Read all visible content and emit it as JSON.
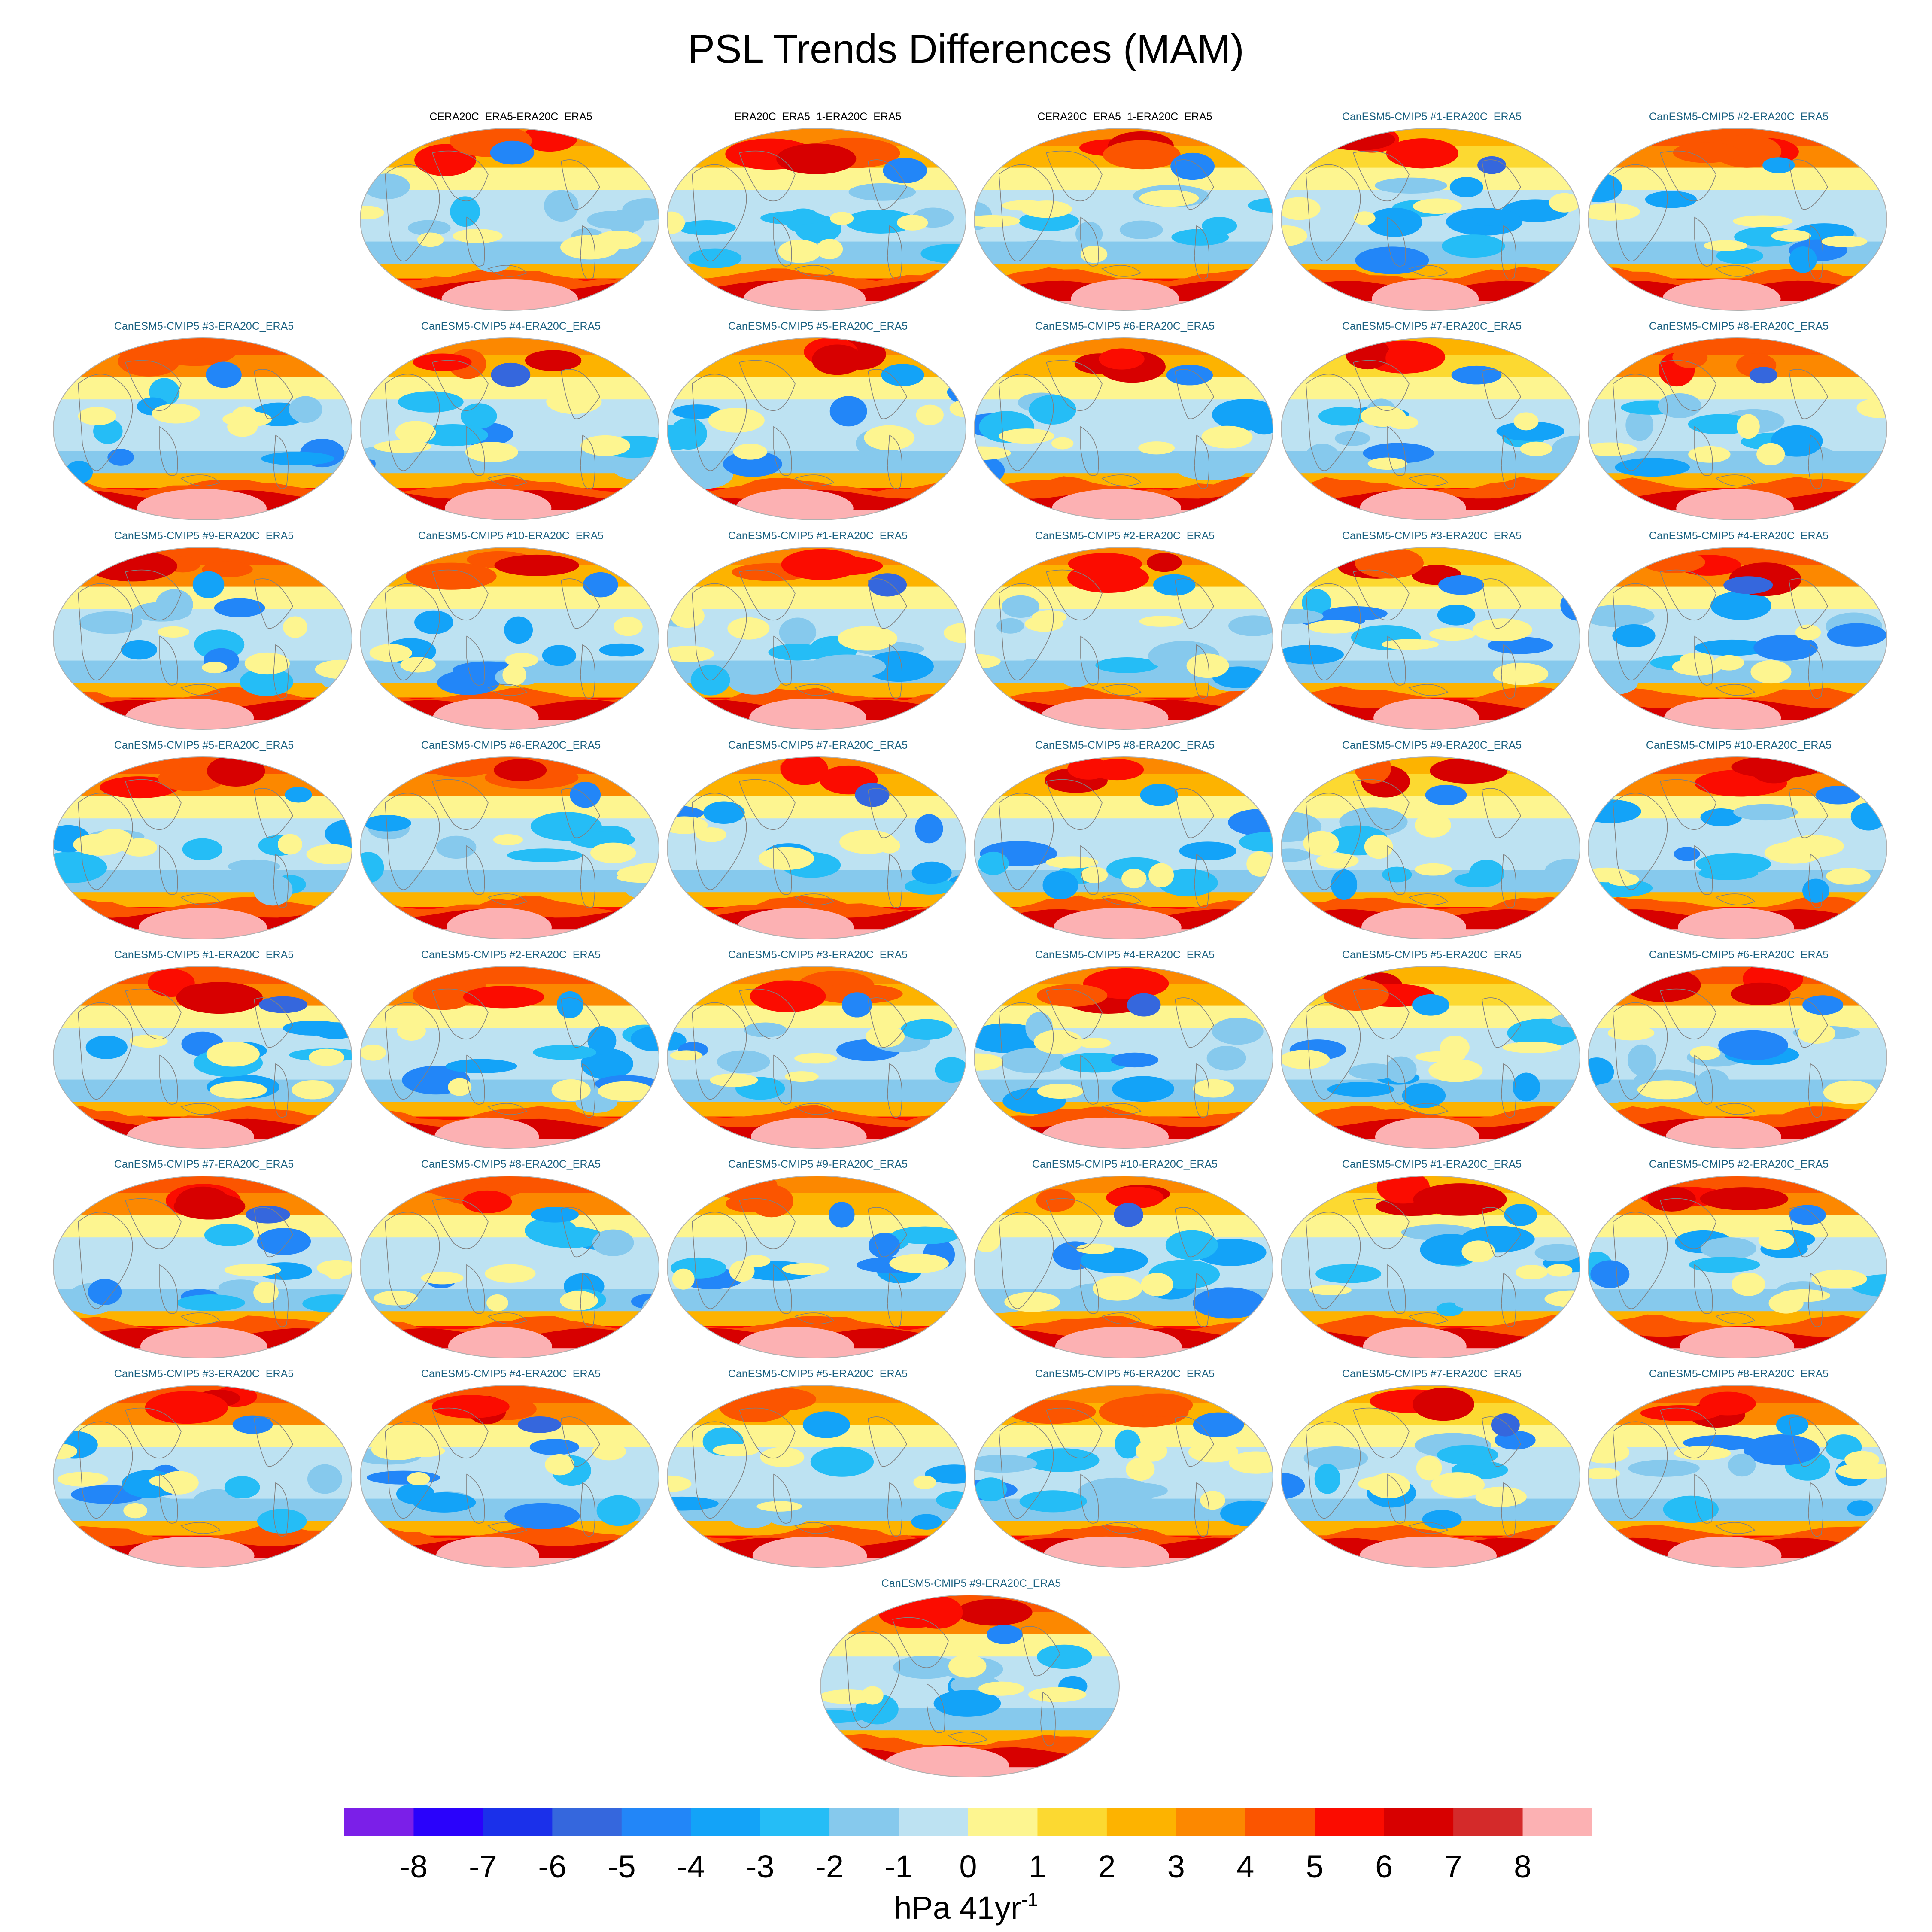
{
  "chart_data": {
    "type": "heatmap",
    "title": "PSL Trends Differences (MAM)",
    "projection": "Robinson",
    "colorbar": {
      "levels": [
        -8,
        -7,
        -6,
        -5,
        -4,
        -3,
        -2,
        -1,
        0,
        1,
        2,
        3,
        4,
        5,
        6,
        7,
        8
      ],
      "tick_labels": [
        "-8",
        "-7",
        "-6",
        "-5",
        "-4",
        "-3",
        "-2",
        "-1",
        "0",
        "1",
        "2",
        "3",
        "4",
        "5",
        "6",
        "7",
        "8"
      ],
      "colors": [
        "#7b1fe8",
        "#2a02fb",
        "#1b30ea",
        "#3567dd",
        "#2286f8",
        "#13a3f8",
        "#25bdf6",
        "#86c9ed",
        "#bde2f2",
        "#fdf590",
        "#fcd931",
        "#fdb300",
        "#fc8800",
        "#fb5500",
        "#fb0c00",
        "#d70000",
        "#d42a2a",
        "#fcb1b3"
      ],
      "units_base": "hPa 41yr",
      "units_exp": "-1"
    },
    "panels": [
      {
        "title": "CERA20C_ERA5-ERA20C_ERA5",
        "kind": "reanalysis",
        "variant": 0
      },
      {
        "title": "ERA20C_ERA5_1-ERA20C_ERA5",
        "kind": "reanalysis",
        "variant": 1
      },
      {
        "title": "CERA20C_ERA5_1-ERA20C_ERA5",
        "kind": "reanalysis",
        "variant": 2
      },
      {
        "title": "CanESM5-CMIP5 #1-ERA20C_ERA5",
        "kind": "model",
        "variant": 3
      },
      {
        "title": "CanESM5-CMIP5 #2-ERA20C_ERA5",
        "kind": "model",
        "variant": 4
      },
      {
        "title": "CanESM5-CMIP5 #3-ERA20C_ERA5",
        "kind": "model",
        "variant": 5
      },
      {
        "title": "CanESM5-CMIP5 #4-ERA20C_ERA5",
        "kind": "model",
        "variant": 6
      },
      {
        "title": "CanESM5-CMIP5 #5-ERA20C_ERA5",
        "kind": "model",
        "variant": 7
      },
      {
        "title": "CanESM5-CMIP5 #6-ERA20C_ERA5",
        "kind": "model",
        "variant": 8
      },
      {
        "title": "CanESM5-CMIP5 #7-ERA20C_ERA5",
        "kind": "model",
        "variant": 9
      },
      {
        "title": "CanESM5-CMIP5 #8-ERA20C_ERA5",
        "kind": "model",
        "variant": 10
      },
      {
        "title": "CanESM5-CMIP5 #9-ERA20C_ERA5",
        "kind": "model",
        "variant": 11
      },
      {
        "title": "CanESM5-CMIP5 #10-ERA20C_ERA5",
        "kind": "model",
        "variant": 12
      },
      {
        "title": "CanESM5-CMIP5 #1-ERA20C_ERA5",
        "kind": "model",
        "variant": 13
      },
      {
        "title": "CanESM5-CMIP5 #2-ERA20C_ERA5",
        "kind": "model",
        "variant": 14
      },
      {
        "title": "CanESM5-CMIP5 #3-ERA20C_ERA5",
        "kind": "model",
        "variant": 15
      },
      {
        "title": "CanESM5-CMIP5 #4-ERA20C_ERA5",
        "kind": "model",
        "variant": 16
      },
      {
        "title": "CanESM5-CMIP5 #5-ERA20C_ERA5",
        "kind": "model",
        "variant": 17
      },
      {
        "title": "CanESM5-CMIP5 #6-ERA20C_ERA5",
        "kind": "model",
        "variant": 18
      },
      {
        "title": "CanESM5-CMIP5 #7-ERA20C_ERA5",
        "kind": "model",
        "variant": 19
      },
      {
        "title": "CanESM5-CMIP5 #8-ERA20C_ERA5",
        "kind": "model",
        "variant": 20
      },
      {
        "title": "CanESM5-CMIP5 #9-ERA20C_ERA5",
        "kind": "model",
        "variant": 21
      },
      {
        "title": "CanESM5-CMIP5 #10-ERA20C_ERA5",
        "kind": "model",
        "variant": 22
      },
      {
        "title": "CanESM5-CMIP5 #1-ERA20C_ERA5",
        "kind": "model",
        "variant": 23
      },
      {
        "title": "CanESM5-CMIP5 #2-ERA20C_ERA5",
        "kind": "model",
        "variant": 24
      },
      {
        "title": "CanESM5-CMIP5 #3-ERA20C_ERA5",
        "kind": "model",
        "variant": 25
      },
      {
        "title": "CanESM5-CMIP5 #4-ERA20C_ERA5",
        "kind": "model",
        "variant": 26
      },
      {
        "title": "CanESM5-CMIP5 #5-ERA20C_ERA5",
        "kind": "model",
        "variant": 27
      },
      {
        "title": "CanESM5-CMIP5 #6-ERA20C_ERA5",
        "kind": "model",
        "variant": 28
      },
      {
        "title": "CanESM5-CMIP5 #7-ERA20C_ERA5",
        "kind": "model",
        "variant": 29
      },
      {
        "title": "CanESM5-CMIP5 #8-ERA20C_ERA5",
        "kind": "model",
        "variant": 30
      },
      {
        "title": "CanESM5-CMIP5 #9-ERA20C_ERA5",
        "kind": "model",
        "variant": 31
      },
      {
        "title": "CanESM5-CMIP5 #10-ERA20C_ERA5",
        "kind": "model",
        "variant": 32
      },
      {
        "title": "CanESM5-CMIP5 #1-ERA20C_ERA5",
        "kind": "model",
        "variant": 33
      },
      {
        "title": "CanESM5-CMIP5 #2-ERA20C_ERA5",
        "kind": "model",
        "variant": 34
      },
      {
        "title": "CanESM5-CMIP5 #3-ERA20C_ERA5",
        "kind": "model",
        "variant": 35
      },
      {
        "title": "CanESM5-CMIP5 #4-ERA20C_ERA5",
        "kind": "model",
        "variant": 36
      },
      {
        "title": "CanESM5-CMIP5 #5-ERA20C_ERA5",
        "kind": "model",
        "variant": 37
      },
      {
        "title": "CanESM5-CMIP5 #6-ERA20C_ERA5",
        "kind": "model",
        "variant": 38
      },
      {
        "title": "CanESM5-CMIP5 #7-ERA20C_ERA5",
        "kind": "model",
        "variant": 39
      },
      {
        "title": "CanESM5-CMIP5 #8-ERA20C_ERA5",
        "kind": "model",
        "variant": 40
      },
      {
        "title": "CanESM5-CMIP5 #9-ERA20C_ERA5",
        "kind": "model",
        "variant": 41
      }
    ]
  },
  "style": {
    "title_color_reanalysis": "#000000",
    "title_color_model": "#1a6080",
    "coastline_color": "#808080",
    "outline_color": "#b0b0b0"
  }
}
